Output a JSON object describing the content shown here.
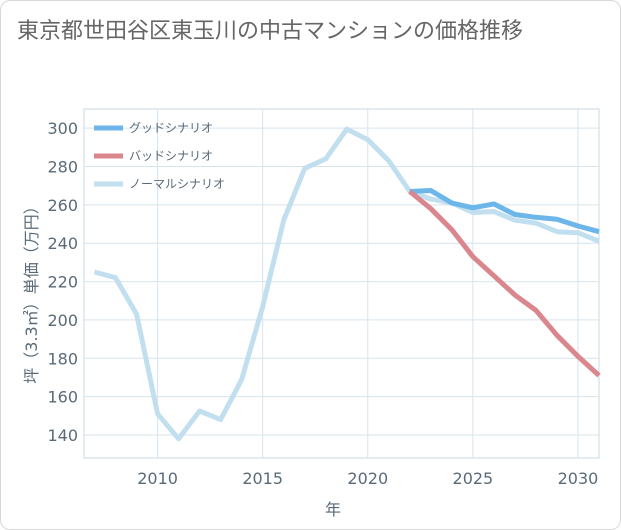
{
  "title": "東京都世田谷区東玉川の中古マンションの価格推移",
  "chart_data": {
    "type": "line",
    "title": "東京都世田谷区東玉川の中古マンションの価格推移",
    "xlabel": "年",
    "ylabel": "坪（3.3㎡）単価（万円）",
    "xlim": [
      2006.5,
      2031
    ],
    "ylim": [
      128,
      310
    ],
    "xticks": [
      2010,
      2015,
      2020,
      2025,
      2030
    ],
    "yticks": [
      140,
      160,
      180,
      200,
      220,
      240,
      260,
      280,
      300
    ],
    "legend_position": "top-left",
    "series": [
      {
        "name": "グッドシナリオ",
        "color": "#6cb6ea",
        "x": [
          2022,
          2023,
          2024,
          2025,
          2026,
          2027,
          2028,
          2029,
          2030,
          2031
        ],
        "values": [
          267,
          267.5,
          261,
          258.5,
          260.5,
          255,
          253.5,
          252.5,
          249,
          246
        ]
      },
      {
        "name": "バッドシナリオ",
        "color": "#d9868d",
        "x": [
          2022,
          2023,
          2024,
          2025,
          2026,
          2027,
          2028,
          2029,
          2030,
          2031
        ],
        "values": [
          267,
          258,
          247,
          233,
          223,
          213,
          205,
          192,
          181,
          171
        ]
      },
      {
        "name": "ノーマルシナリオ",
        "color": "#c2dff0",
        "x": [
          2007,
          2008,
          2009,
          2010,
          2011,
          2012,
          2013,
          2014,
          2015,
          2016,
          2017,
          2018,
          2019,
          2020,
          2021,
          2022,
          2023,
          2024,
          2025,
          2026,
          2027,
          2028,
          2029,
          2030,
          2031
        ],
        "values": [
          225,
          222,
          203,
          151,
          138,
          152.5,
          148,
          169,
          207,
          252,
          279,
          284,
          299.5,
          294,
          283,
          267,
          263,
          261,
          256,
          256.5,
          252,
          250.5,
          246,
          245.5,
          241
        ]
      }
    ]
  }
}
